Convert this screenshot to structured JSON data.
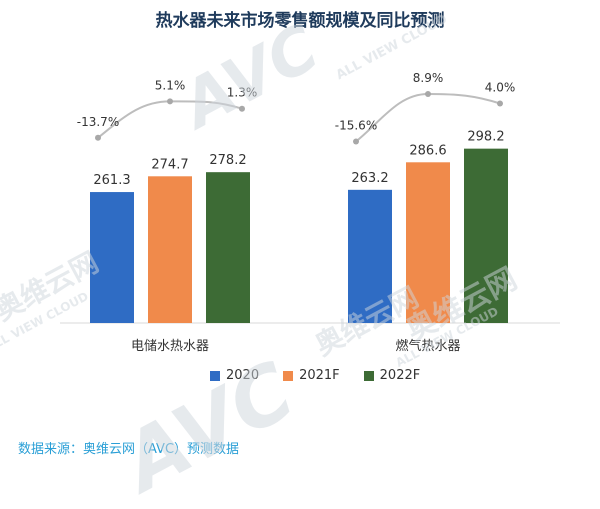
{
  "title": "热水器未来市场零售额规模及同比预测",
  "source": "数据来源：奥维云网（AVC）预测数据",
  "watermark": {
    "brand": "AVC",
    "cn": "奥维云网",
    "en": "ALL VIEW CLOUD"
  },
  "colors": {
    "s2020": "#2f6cc4",
    "s2021": "#f08a4b",
    "s2022": "#3d6b35",
    "line": "#bdbdbd"
  },
  "chart_data": {
    "type": "bar",
    "categories": [
      "电储水热水器",
      "燃气热水器"
    ],
    "series": [
      {
        "name": "2020",
        "values": [
          261.3,
          263.2
        ]
      },
      {
        "name": "2021F",
        "values": [
          274.7,
          286.6
        ]
      },
      {
        "name": "2022F",
        "values": [
          278.2,
          298.2
        ]
      }
    ],
    "growth": [
      {
        "category": "电储水热水器",
        "values": [
          "-13.7%",
          "5.1%",
          "1.3%"
        ],
        "numeric": [
          -13.7,
          5.1,
          1.3
        ]
      },
      {
        "category": "燃气热水器",
        "values": [
          "-15.6%",
          "8.9%",
          "4.0%"
        ],
        "numeric": [
          -15.6,
          8.9,
          4.0
        ]
      }
    ],
    "legend_position": "bottom"
  }
}
